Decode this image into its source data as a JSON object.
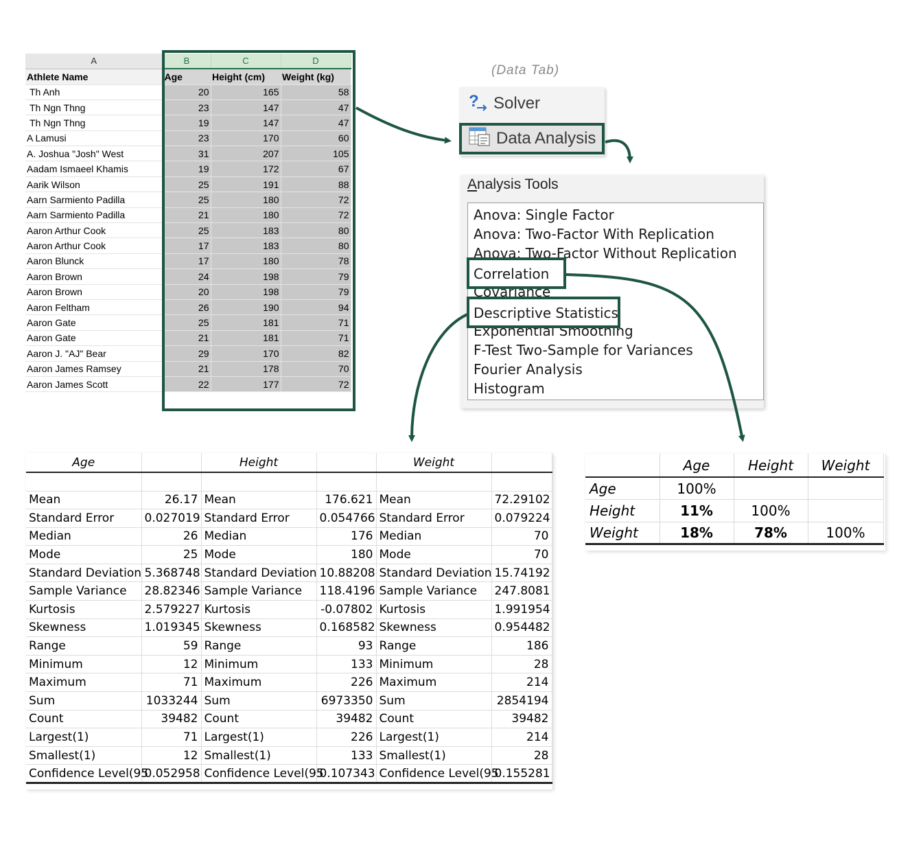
{
  "sheet": {
    "col_letters": [
      "A",
      "B",
      "C",
      "D"
    ],
    "headers": [
      "Athlete Name",
      "Age",
      "Height (cm)",
      "Weight (kg)"
    ],
    "rows": [
      [
        "Th Anh",
        "20",
        "165",
        "58"
      ],
      [
        "Th Ngn Thng",
        "23",
        "147",
        "47"
      ],
      [
        "Th Ngn Thng",
        "19",
        "147",
        "47"
      ],
      [
        "A Lamusi",
        "23",
        "170",
        "60"
      ],
      [
        "A. Joshua \"Josh\" West",
        "31",
        "207",
        "105"
      ],
      [
        "Aadam Ismaeel Khamis",
        "19",
        "172",
        "67"
      ],
      [
        "Aarik Wilson",
        "25",
        "191",
        "88"
      ],
      [
        "Aarn Sarmiento Padilla",
        "25",
        "180",
        "72"
      ],
      [
        "Aarn Sarmiento Padilla",
        "21",
        "180",
        "72"
      ],
      [
        "Aaron Arthur Cook",
        "25",
        "183",
        "80"
      ],
      [
        "Aaron Arthur Cook",
        "17",
        "183",
        "80"
      ],
      [
        "Aaron Blunck",
        "17",
        "180",
        "78"
      ],
      [
        "Aaron Brown",
        "24",
        "198",
        "79"
      ],
      [
        "Aaron Brown",
        "20",
        "198",
        "79"
      ],
      [
        "Aaron Feltham",
        "26",
        "190",
        "94"
      ],
      [
        "Aaron Gate",
        "25",
        "181",
        "71"
      ],
      [
        "Aaron Gate",
        "21",
        "181",
        "71"
      ],
      [
        "Aaron J. \"AJ\" Bear",
        "29",
        "170",
        "82"
      ],
      [
        "Aaron James Ramsey",
        "21",
        "178",
        "70"
      ],
      [
        "Aaron James Scott",
        "22",
        "177",
        "72"
      ]
    ]
  },
  "data_tab": {
    "label": "(Data Tab)",
    "solver_label": "Solver",
    "data_analysis_label": "Data Analysis"
  },
  "analysis_tools": {
    "title": "Analysis Tools",
    "items": [
      "Anova: Single Factor",
      "Anova: Two-Factor With Replication",
      "Anova: Two-Factor Without Replication",
      "Correlation",
      "Covariance",
      "Descriptive Statistics",
      "Exponential Smoothing",
      "F-Test Two-Sample for Variances",
      "Fourier Analysis",
      "Histogram"
    ]
  },
  "descriptive": {
    "headers": [
      "Age",
      "",
      "Height",
      "",
      "Weight",
      ""
    ],
    "rows": [
      [
        "Mean",
        "26.17",
        "Mean",
        "176.621",
        "Mean",
        "72.29102"
      ],
      [
        "Standard Error",
        "0.027019",
        "Standard Error",
        "0.054766",
        "Standard Error",
        "0.079224"
      ],
      [
        "Median",
        "26",
        "Median",
        "176",
        "Median",
        "70"
      ],
      [
        "Mode",
        "25",
        "Mode",
        "180",
        "Mode",
        "70"
      ],
      [
        "Standard Deviation",
        "5.368748",
        "Standard Deviation",
        "10.88208",
        "Standard Deviation",
        "15.74192"
      ],
      [
        "Sample Variance",
        "28.82346",
        "Sample Variance",
        "118.4196",
        "Sample Variance",
        "247.8081"
      ],
      [
        "Kurtosis",
        "2.579227",
        "Kurtosis",
        "-0.07802",
        "Kurtosis",
        "1.991954"
      ],
      [
        "Skewness",
        "1.019345",
        "Skewness",
        "0.168582",
        "Skewness",
        "0.954482"
      ],
      [
        "Range",
        "59",
        "Range",
        "93",
        "Range",
        "186"
      ],
      [
        "Minimum",
        "12",
        "Minimum",
        "133",
        "Minimum",
        "28"
      ],
      [
        "Maximum",
        "71",
        "Maximum",
        "226",
        "Maximum",
        "214"
      ],
      [
        "Sum",
        "1033244",
        "Sum",
        "6973350",
        "Sum",
        "2854194"
      ],
      [
        "Count",
        "39482",
        "Count",
        "39482",
        "Count",
        "39482"
      ],
      [
        "Largest(1)",
        "71",
        "Largest(1)",
        "226",
        "Largest(1)",
        "214"
      ],
      [
        "Smallest(1)",
        "12",
        "Smallest(1)",
        "133",
        "Smallest(1)",
        "28"
      ],
      [
        "Confidence Level(95",
        "0.052958",
        "Confidence Level(95",
        "0.107343",
        "Confidence Level(95",
        "0.155281"
      ]
    ]
  },
  "correlation": {
    "headers": [
      "",
      "Age",
      "Height",
      "Weight"
    ],
    "rows": [
      [
        "Age",
        "100%",
        "",
        ""
      ],
      [
        "Height",
        "11%",
        "100%",
        ""
      ],
      [
        "Weight",
        "18%",
        "78%",
        "100%"
      ]
    ]
  },
  "colors": {
    "accent": "#1e5642",
    "selection_fill": "#c8c8c8"
  }
}
